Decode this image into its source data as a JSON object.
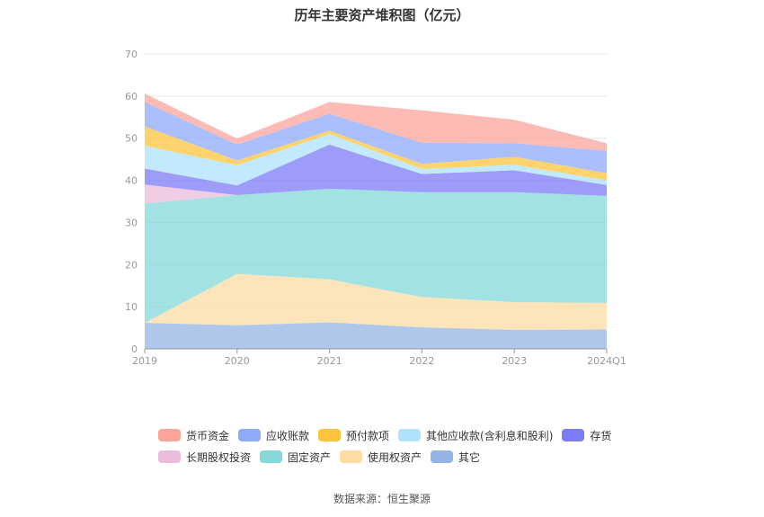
{
  "title": "历年主要资产堆积图（亿元）",
  "source_text": "数据来源：恒生聚源",
  "colors": {
    "货币资金": "#fba49b",
    "应收账款": "#8fa9fb",
    "预付款项": "#fcc43c",
    "其他应收款(含利息和股利)": "#aee3fb",
    "存货": "#7c7cf7",
    "长期股权投资": "#ecbcdc",
    "固定资产": "#84d8d8",
    "使用权资产": "#fcdca4",
    "其它": "#94b4e4"
  },
  "chart_data": {
    "type": "area",
    "stacked": true,
    "categories": [
      "2019",
      "2020",
      "2021",
      "2022",
      "2023",
      "2024Q1"
    ],
    "ylim": [
      0,
      70
    ],
    "yticks": [
      0,
      10,
      20,
      30,
      40,
      50,
      60,
      70
    ],
    "grid": true,
    "legend_position": "bottom",
    "series": [
      {
        "name": "其它",
        "values": [
          6.2,
          5.6,
          6.3,
          5.1,
          4.5,
          4.6
        ]
      },
      {
        "name": "使用权资产",
        "values": [
          0.0,
          12.2,
          10.2,
          7.2,
          6.6,
          6.3
        ]
      },
      {
        "name": "固定资产",
        "values": [
          28.3,
          18.7,
          21.5,
          24.9,
          26.1,
          25.4
        ]
      },
      {
        "name": "长期股权投资",
        "values": [
          4.5,
          0.0,
          0.0,
          0.0,
          0.0,
          0.0
        ]
      },
      {
        "name": "存货",
        "values": [
          3.8,
          2.3,
          10.5,
          4.3,
          5.2,
          2.6
        ]
      },
      {
        "name": "其他应收款(含利息和股利)",
        "values": [
          5.4,
          4.8,
          2.5,
          1.2,
          1.3,
          1.1
        ]
      },
      {
        "name": "预付款项",
        "values": [
          4.6,
          1.1,
          0.8,
          1.2,
          1.9,
          1.7
        ]
      },
      {
        "name": "应收账款",
        "values": [
          5.8,
          3.8,
          4.0,
          5.0,
          3.2,
          5.3
        ]
      },
      {
        "name": "货币资金",
        "values": [
          2.0,
          1.4,
          2.8,
          7.7,
          5.6,
          1.8
        ]
      }
    ],
    "legend_rows": [
      [
        "货币资金",
        "应收账款",
        "预付款项",
        "其他应收款(含利息和股利)",
        "存货"
      ],
      [
        "长期股权投资",
        "固定资产",
        "使用权资产",
        "其它"
      ]
    ]
  }
}
